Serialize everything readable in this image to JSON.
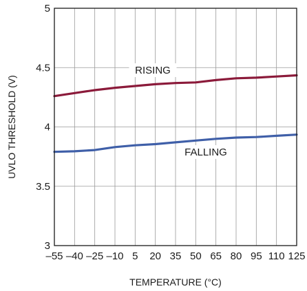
{
  "chart_data": {
    "type": "line",
    "title": "",
    "xlabel": "TEMPERATURE (°C)",
    "ylabel": "UVLO THRESHOLD (V)",
    "xlim": [
      -55,
      125
    ],
    "ylim": [
      3,
      5
    ],
    "x_ticks": [
      -55,
      -40,
      -25,
      -10,
      5,
      20,
      35,
      50,
      65,
      80,
      95,
      110,
      125
    ],
    "x_tick_labels": [
      "–55",
      "–40",
      "–25",
      "–10",
      "5",
      "20",
      "35",
      "50",
      "65",
      "80",
      "95",
      "110",
      "125"
    ],
    "y_ticks": [
      3,
      3.5,
      4,
      4.5,
      5
    ],
    "y_tick_labels": [
      "3",
      "3.5",
      "4",
      "4.5",
      "5"
    ],
    "grid": true,
    "series": [
      {
        "name": "RISING",
        "color": "#8b1a3a",
        "x": [
          -55,
          -40,
          -25,
          -10,
          5,
          20,
          35,
          50,
          65,
          80,
          95,
          110,
          125
        ],
        "y": [
          4.26,
          4.285,
          4.31,
          4.33,
          4.345,
          4.36,
          4.37,
          4.375,
          4.395,
          4.41,
          4.415,
          4.425,
          4.435
        ]
      },
      {
        "name": "FALLING",
        "color": "#3f5fa8",
        "x": [
          -55,
          -40,
          -25,
          -10,
          5,
          20,
          35,
          50,
          65,
          80,
          95,
          110,
          125
        ],
        "y": [
          3.79,
          3.795,
          3.805,
          3.83,
          3.845,
          3.855,
          3.87,
          3.885,
          3.9,
          3.91,
          3.915,
          3.925,
          3.935
        ]
      }
    ],
    "annotations": [
      {
        "text": "RISING",
        "series": "RISING"
      },
      {
        "text": "FALLING",
        "series": "FALLING"
      }
    ]
  }
}
